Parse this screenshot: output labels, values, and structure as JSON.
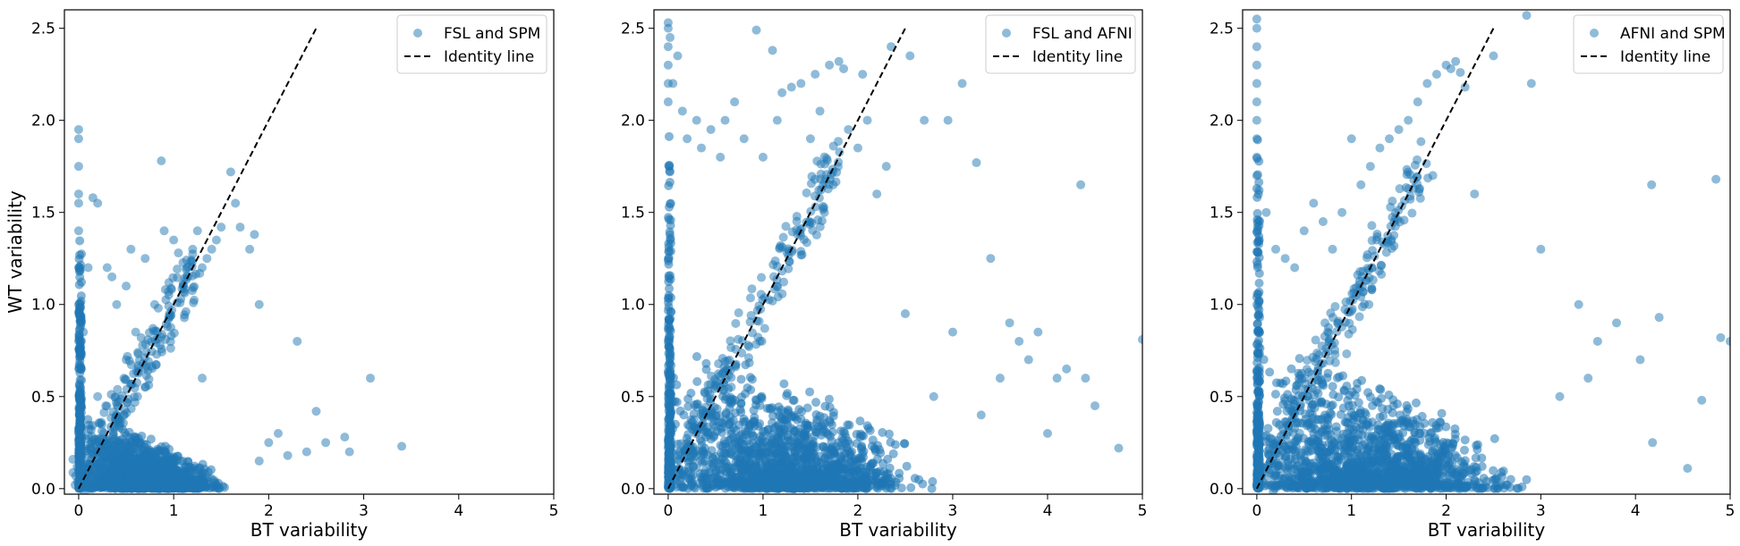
{
  "colors": {
    "points": "#1f77b4",
    "identity": "#000000",
    "frame": "#000000",
    "legend_border": "#cccccc"
  },
  "chart_data": [
    {
      "type": "scatter",
      "xlabel": "BT variability",
      "ylabel": "WT variability",
      "xlim": [
        -0.15,
        5.0
      ],
      "ylim": [
        -0.03,
        2.6
      ],
      "xticks": [
        "0",
        "1",
        "2",
        "3",
        "4",
        "5"
      ],
      "yticks": [
        "0.0",
        "0.5",
        "1.0",
        "1.5",
        "2.0",
        "2.5"
      ],
      "grid": false,
      "legend_position": "top-right",
      "series": [
        {
          "name": "FSL and SPM",
          "marker": "circle",
          "alpha": 0.5,
          "x": [
            0.0,
            0.0,
            0.0,
            0.0,
            0.0,
            0.0,
            0.0,
            0.0,
            0.02,
            0.05,
            0.1,
            0.15,
            0.2,
            0.3,
            0.35,
            0.4,
            0.5,
            0.55,
            0.6,
            0.7,
            0.8,
            0.87,
            0.9,
            1.0,
            1.05,
            1.1,
            1.15,
            1.2,
            1.25,
            1.3,
            1.35,
            1.4,
            1.45,
            1.5,
            1.6,
            1.65,
            1.7,
            1.8,
            1.85,
            1.9,
            1.3,
            0.5,
            0.2,
            2.3,
            2.5,
            2.6,
            2.8,
            2.85,
            3.07,
            3.4,
            2.1,
            2.2,
            2.4,
            2.0,
            1.9
          ],
          "y": [
            1.95,
            1.9,
            1.75,
            1.6,
            1.55,
            1.4,
            1.2,
            1.0,
            0.9,
            0.85,
            1.2,
            1.58,
            1.55,
            1.2,
            1.15,
            1.0,
            1.1,
            1.3,
            0.85,
            1.25,
            1.0,
            1.78,
            1.4,
            1.35,
            1.28,
            1.1,
            1.15,
            1.3,
            1.4,
            1.2,
            1.25,
            1.3,
            1.35,
            1.42,
            1.72,
            1.55,
            1.42,
            1.3,
            1.38,
            1.0,
            0.6,
            0.7,
            0.5,
            0.8,
            0.42,
            0.25,
            0.28,
            0.2,
            0.6,
            0.23,
            0.3,
            0.18,
            0.2,
            0.25,
            0.15
          ]
        },
        {
          "name": "Identity line",
          "style": "dashed",
          "x": [
            0,
            2.5
          ],
          "y": [
            0,
            2.5
          ]
        }
      ]
    },
    {
      "type": "scatter",
      "xlabel": "BT variability",
      "ylabel": "",
      "xlim": [
        -0.15,
        5.0
      ],
      "ylim": [
        -0.03,
        2.6
      ],
      "xticks": [
        "0",
        "1",
        "2",
        "3",
        "4",
        "5"
      ],
      "yticks": [
        "0.0",
        "0.5",
        "1.0",
        "1.5",
        "2.0",
        "2.5"
      ],
      "grid": false,
      "legend_position": "top-right",
      "series": [
        {
          "name": "FSL and AFNI",
          "marker": "circle",
          "alpha": 0.5,
          "x": [
            0.0,
            0.0,
            0.0,
            0.0,
            0.0,
            0.0,
            0.02,
            0.05,
            0.1,
            0.15,
            0.2,
            0.3,
            0.35,
            0.45,
            0.55,
            0.6,
            0.7,
            0.8,
            0.93,
            1.0,
            1.1,
            1.15,
            1.2,
            1.3,
            1.4,
            1.5,
            1.55,
            1.6,
            1.7,
            1.8,
            1.85,
            1.9,
            2.0,
            2.05,
            2.1,
            2.2,
            2.3,
            2.35,
            2.55,
            2.7,
            2.95,
            3.1,
            3.25,
            3.4,
            3.6,
            3.7,
            3.8,
            3.9,
            4.1,
            4.2,
            4.35,
            4.4,
            4.5,
            4.75,
            5.0,
            2.5,
            3.0,
            3.5,
            2.8,
            3.3,
            4.0
          ],
          "y": [
            2.53,
            2.5,
            2.4,
            2.3,
            2.2,
            2.1,
            2.45,
            2.2,
            2.35,
            2.05,
            1.9,
            2.0,
            1.85,
            1.95,
            1.8,
            2.0,
            2.1,
            1.9,
            2.49,
            1.8,
            2.38,
            2.0,
            2.15,
            2.18,
            2.2,
            1.9,
            2.25,
            2.05,
            2.3,
            2.32,
            2.28,
            1.95,
            1.85,
            2.25,
            2.0,
            1.6,
            1.75,
            2.4,
            2.35,
            2.0,
            2.0,
            2.2,
            1.77,
            1.25,
            0.9,
            0.8,
            0.7,
            0.85,
            0.6,
            0.65,
            1.65,
            0.6,
            0.45,
            0.22,
            0.81,
            0.95,
            0.85,
            0.6,
            0.5,
            0.4,
            0.3
          ]
        },
        {
          "name": "Identity line",
          "style": "dashed",
          "x": [
            0,
            2.5
          ],
          "y": [
            0,
            2.5
          ]
        }
      ]
    },
    {
      "type": "scatter",
      "xlabel": "BT variability",
      "ylabel": "",
      "xlim": [
        -0.15,
        5.0
      ],
      "ylim": [
        -0.03,
        2.6
      ],
      "xticks": [
        "0",
        "1",
        "2",
        "3",
        "4",
        "5"
      ],
      "yticks": [
        "0.0",
        "0.5",
        "1.0",
        "1.5",
        "2.0",
        "2.5"
      ],
      "grid": false,
      "legend_position": "top-right",
      "series": [
        {
          "name": "AFNI and SPM",
          "marker": "circle",
          "alpha": 0.5,
          "x": [
            0.0,
            0.0,
            0.0,
            0.0,
            0.0,
            0.0,
            0.0,
            0.0,
            0.0,
            0.0,
            0.1,
            0.2,
            0.3,
            0.4,
            0.5,
            0.6,
            0.7,
            0.8,
            0.9,
            1.0,
            1.1,
            1.2,
            1.3,
            1.4,
            1.5,
            1.6,
            1.7,
            1.8,
            1.9,
            2.0,
            2.05,
            2.1,
            2.15,
            2.2,
            2.3,
            2.5,
            2.85,
            2.9,
            3.0,
            3.4,
            3.6,
            3.8,
            4.05,
            4.17,
            4.25,
            4.55,
            4.7,
            4.85,
            4.9,
            5.0,
            4.18,
            3.5,
            3.2
          ],
          "y": [
            2.55,
            2.5,
            2.4,
            2.3,
            2.2,
            2.1,
            2.0,
            1.9,
            1.8,
            1.7,
            1.5,
            1.3,
            1.25,
            1.2,
            1.4,
            1.55,
            1.45,
            1.3,
            1.5,
            1.9,
            1.65,
            1.75,
            1.85,
            1.9,
            1.95,
            2.0,
            2.1,
            2.2,
            2.25,
            2.3,
            2.28,
            2.32,
            2.26,
            2.18,
            1.6,
            2.35,
            2.57,
            2.2,
            1.3,
            1.0,
            0.8,
            0.9,
            0.7,
            1.65,
            0.93,
            0.11,
            0.48,
            1.68,
            0.82,
            0.8,
            0.25,
            0.6,
            0.5
          ]
        },
        {
          "name": "Identity line",
          "style": "dashed",
          "x": [
            0,
            2.5
          ],
          "y": [
            0,
            2.5
          ]
        }
      ]
    }
  ]
}
